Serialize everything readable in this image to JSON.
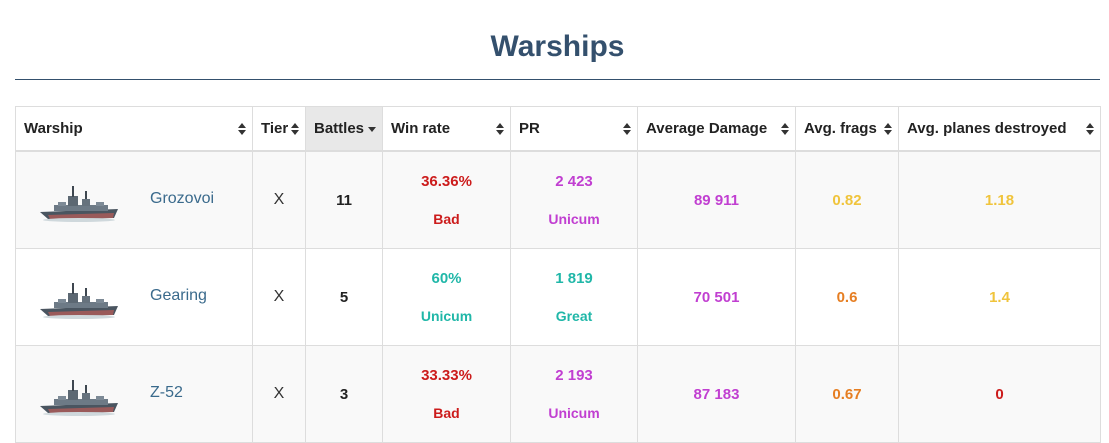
{
  "page": {
    "title": "Warships"
  },
  "table": {
    "headers": {
      "warship": "Warship",
      "tier": "Tier",
      "battles": "Battles",
      "win_rate": "Win rate",
      "pr": "PR",
      "avg_damage": "Average Damage",
      "avg_frags": "Avg. frags",
      "avg_planes": "Avg. planes destroyed"
    },
    "sorted_column": "battles",
    "sort_direction": "descending",
    "rows": [
      {
        "ship": "Grozovoi",
        "ship_icon": "destroyer-ship-image",
        "tier": "X",
        "battles": "11",
        "win_rate": "36.36%",
        "win_rate_label": "Bad",
        "win_rate_color": "#cc1c1c",
        "pr": "2 423",
        "pr_label": "Unicum",
        "pr_color": "#c13fd1",
        "avg_damage": "89 911",
        "avg_damage_color": "#c13fd1",
        "avg_frags": "0.82",
        "avg_frags_color": "#f0c43c",
        "avg_planes": "1.18",
        "avg_planes_color": "#f0c43c"
      },
      {
        "ship": "Gearing",
        "ship_icon": "destroyer-ship-image",
        "tier": "X",
        "battles": "5",
        "win_rate": "60%",
        "win_rate_label": "Unicum",
        "win_rate_color": "#20b7a8",
        "pr": "1 819",
        "pr_label": "Great",
        "pr_color": "#20b7a8",
        "avg_damage": "70 501",
        "avg_damage_color": "#c13fd1",
        "avg_frags": "0.6",
        "avg_frags_color": "#e67e22",
        "avg_planes": "1.4",
        "avg_planes_color": "#f0c43c"
      },
      {
        "ship": "Z-52",
        "ship_icon": "destroyer-ship-image",
        "tier": "X",
        "battles": "3",
        "win_rate": "33.33%",
        "win_rate_label": "Bad",
        "win_rate_color": "#cc1c1c",
        "pr": "2 193",
        "pr_label": "Unicum",
        "pr_color": "#c13fd1",
        "avg_damage": "87 183",
        "avg_damage_color": "#c13fd1",
        "avg_frags": "0.67",
        "avg_frags_color": "#e67e22",
        "avg_planes": "0",
        "avg_planes_color": "#cc1c1c"
      }
    ]
  },
  "colors": {
    "title": "#34506d",
    "ship_link": "#3a6a8c",
    "sorted_header_bg": "#e8e8e8"
  }
}
